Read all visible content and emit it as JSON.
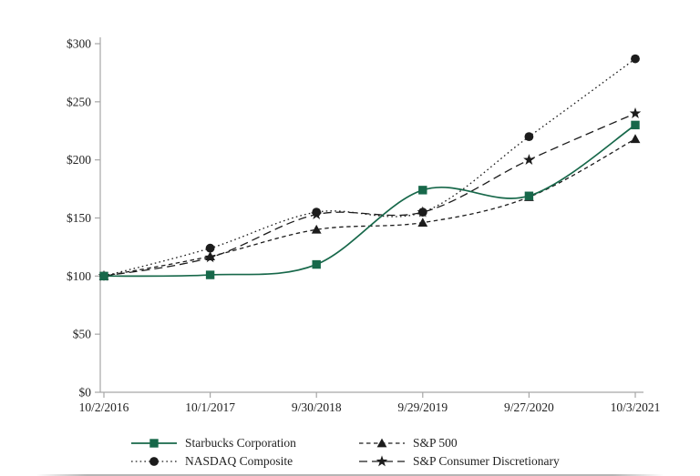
{
  "figure": {
    "background": "#ffffff",
    "axis_color": "#a6a6a6",
    "label_color": "#222222"
  },
  "chart_data": {
    "type": "line",
    "title": "",
    "categories": [
      "10/2/2016",
      "10/1/2017",
      "9/30/2018",
      "9/29/2019",
      "9/27/2020",
      "10/3/2021"
    ],
    "series": [
      {
        "name": "Starbucks Corporation",
        "values": [
          100,
          101,
          110,
          174,
          169,
          230
        ],
        "color": "#17684a",
        "line_style": "solid",
        "marker": "square"
      },
      {
        "name": "NASDAQ Composite",
        "values": [
          100,
          124,
          155,
          155,
          220,
          287
        ],
        "color": "#1c1c1c",
        "line_style": "dotted",
        "marker": "circle"
      },
      {
        "name": "S&P 500",
        "values": [
          100,
          117,
          140,
          146,
          168,
          218
        ],
        "color": "#1c1c1c",
        "line_style": "dashed",
        "marker": "triangle"
      },
      {
        "name": "S&P Consumer Discretionary",
        "values": [
          100,
          116,
          153,
          155,
          200,
          240
        ],
        "color": "#1c1c1c",
        "line_style": "long-dash",
        "marker": "star"
      }
    ],
    "ylim": [
      0,
      300
    ],
    "ytick_step": 50,
    "ytick_labels": [
      "$0",
      "$50",
      "$100",
      "$150",
      "$200",
      "$250",
      "$300"
    ],
    "grid": false,
    "legend_position": "bottom",
    "smooth_lines": true
  }
}
